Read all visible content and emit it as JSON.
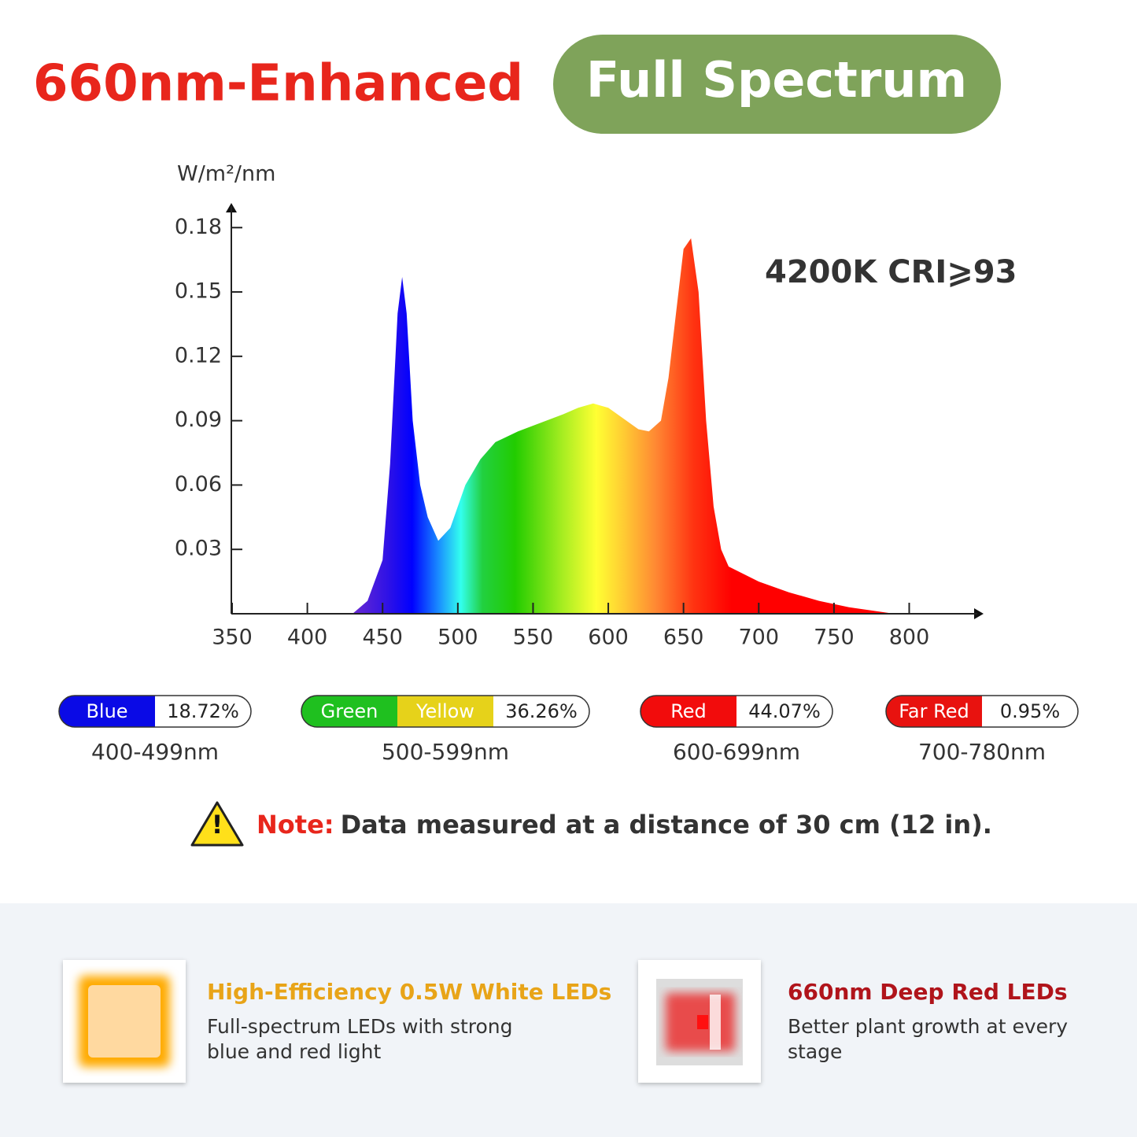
{
  "chart_data": {
    "type": "area",
    "title": "660nm-Enhanced",
    "subtitle": "Full Spectrum",
    "y_label": "W/m²/nm",
    "annotation": "4200K CRI⩾93",
    "x": [
      430,
      440,
      450,
      455,
      460,
      463,
      466,
      470,
      475,
      480,
      487,
      495,
      505,
      515,
      525,
      540,
      555,
      570,
      580,
      590,
      600,
      610,
      620,
      627,
      635,
      640,
      645,
      650,
      655,
      660,
      665,
      670,
      675,
      680,
      700,
      720,
      740,
      760,
      780,
      790
    ],
    "values": [
      0,
      0.006,
      0.025,
      0.07,
      0.14,
      0.157,
      0.14,
      0.09,
      0.06,
      0.045,
      0.034,
      0.04,
      0.06,
      0.072,
      0.08,
      0.085,
      0.089,
      0.093,
      0.096,
      0.098,
      0.096,
      0.091,
      0.086,
      0.085,
      0.09,
      0.11,
      0.14,
      0.17,
      0.175,
      0.15,
      0.09,
      0.05,
      0.03,
      0.022,
      0.015,
      0.01,
      0.006,
      0.003,
      0.001,
      0
    ],
    "xlim": [
      350,
      840
    ],
    "xticks": [
      350,
      400,
      450,
      500,
      550,
      600,
      650,
      700,
      750,
      800
    ],
    "ylim": [
      0,
      0.19
    ],
    "yticks": [
      0.03,
      0.06,
      0.09,
      0.12,
      0.15,
      0.18
    ]
  },
  "bands": [
    {
      "segments": [
        {
          "name": "Blue",
          "color": "#0a0ae6"
        }
      ],
      "percent": "18.72%",
      "range": "400-499nm"
    },
    {
      "segments": [
        {
          "name": "Green",
          "color": "#1fc01f"
        },
        {
          "name": "Yellow",
          "color": "#e6d21a"
        }
      ],
      "percent": "36.26%",
      "range": "500-599nm"
    },
    {
      "segments": [
        {
          "name": "Red",
          "color": "#f20c0c"
        }
      ],
      "percent": "44.07%",
      "range": "600-699nm"
    },
    {
      "segments": [
        {
          "name": "Far Red",
          "color": "#e8120f"
        }
      ],
      "percent": "0.95%",
      "range": "700-780nm"
    }
  ],
  "note": {
    "label": "Note:",
    "text": "Data measured at a distance of 30 cm (12 in)."
  },
  "features": [
    {
      "title": "High-Efficiency 0.5W White LEDs",
      "description": "Full-spectrum LEDs with strong blue and red light"
    },
    {
      "title": "660nm Deep Red LEDs",
      "description": "Better plant growth at every stage"
    }
  ]
}
